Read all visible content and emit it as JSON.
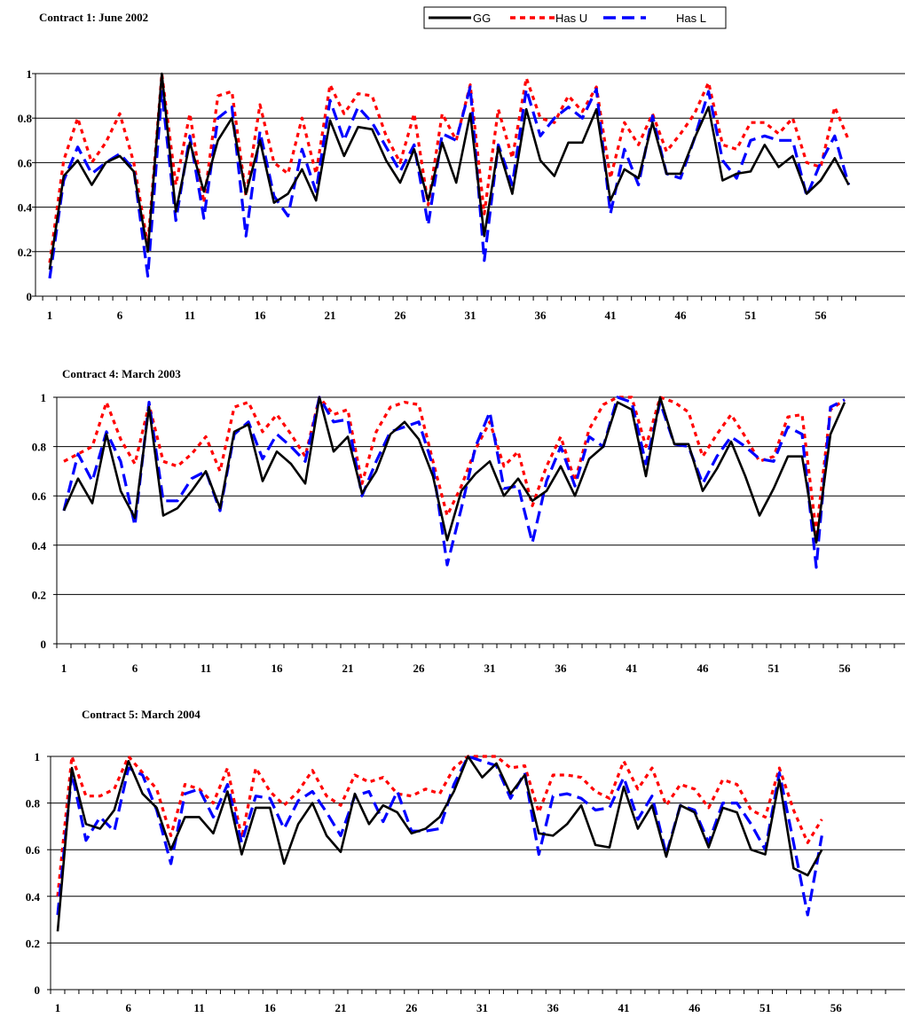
{
  "legend": {
    "placement": "top-center",
    "items": [
      {
        "label": "GG",
        "color": "#000000",
        "style": "solid"
      },
      {
        "label": "Has U",
        "color": "#ff0000",
        "style": "dotted"
      },
      {
        "label": "Has L",
        "color": "#0000ff",
        "style": "dashed"
      }
    ]
  },
  "chart_data": [
    {
      "type": "line",
      "title": "Contract 1: June 2002",
      "xlabel": "",
      "ylabel": "",
      "ylim": [
        0,
        1
      ],
      "yticks": [
        "0",
        "0.2",
        "0.4",
        "0.6",
        "0.8",
        "1"
      ],
      "xlim": [
        1,
        59
      ],
      "xticks": [
        "1",
        "6",
        "11",
        "16",
        "21",
        "26",
        "31",
        "36",
        "41",
        "46",
        "51",
        "56"
      ],
      "grid": "horizontal",
      "series": [
        {
          "name": "GG",
          "color": "#000000",
          "style": "solid",
          "values": [
            0.12,
            0.54,
            0.61,
            0.5,
            0.6,
            0.63,
            0.56,
            0.2,
            1.0,
            0.38,
            0.69,
            0.47,
            0.7,
            0.8,
            0.46,
            0.7,
            0.42,
            0.46,
            0.57,
            0.43,
            0.79,
            0.63,
            0.76,
            0.75,
            0.61,
            0.51,
            0.66,
            0.43,
            0.69,
            0.51,
            0.82,
            0.27,
            0.67,
            0.46,
            0.84,
            0.61,
            0.54,
            0.69,
            0.69,
            0.84,
            0.43,
            0.57,
            0.53,
            0.78,
            0.55,
            0.55,
            0.71,
            0.85,
            0.52,
            0.55,
            0.56,
            0.68,
            0.58,
            0.63,
            0.46,
            0.52,
            0.62,
            0.5
          ]
        },
        {
          "name": "Has U",
          "color": "#ff0000",
          "style": "dotted",
          "values": [
            0.15,
            0.61,
            0.8,
            0.6,
            0.69,
            0.82,
            0.6,
            0.23,
            1.0,
            0.5,
            0.82,
            0.42,
            0.9,
            0.92,
            0.45,
            0.86,
            0.6,
            0.55,
            0.8,
            0.55,
            0.95,
            0.82,
            0.91,
            0.9,
            0.72,
            0.6,
            0.82,
            0.41,
            0.82,
            0.7,
            0.95,
            0.37,
            0.84,
            0.62,
            0.98,
            0.8,
            0.78,
            0.9,
            0.83,
            0.94,
            0.53,
            0.78,
            0.68,
            0.82,
            0.65,
            0.73,
            0.82,
            0.96,
            0.68,
            0.66,
            0.78,
            0.78,
            0.73,
            0.8,
            0.6,
            0.58,
            0.85,
            0.7
          ]
        },
        {
          "name": "Has L",
          "color": "#0000ff",
          "style": "dashed",
          "values": [
            0.08,
            0.52,
            0.67,
            0.55,
            0.6,
            0.64,
            0.57,
            0.09,
            0.92,
            0.34,
            0.72,
            0.35,
            0.8,
            0.85,
            0.27,
            0.74,
            0.45,
            0.36,
            0.66,
            0.47,
            0.88,
            0.7,
            0.85,
            0.78,
            0.67,
            0.56,
            0.68,
            0.32,
            0.73,
            0.7,
            0.94,
            0.16,
            0.68,
            0.5,
            0.93,
            0.72,
            0.8,
            0.85,
            0.8,
            0.93,
            0.37,
            0.66,
            0.5,
            0.81,
            0.55,
            0.53,
            0.71,
            0.92,
            0.61,
            0.53,
            0.7,
            0.72,
            0.7,
            0.7,
            0.45,
            0.6,
            0.72,
            0.5
          ]
        }
      ]
    },
    {
      "type": "line",
      "title": "Contract 4: March 2003",
      "xlabel": "",
      "ylabel": "",
      "ylim": [
        0,
        1
      ],
      "yticks": [
        "0",
        "0.2",
        "0.4",
        "0.6",
        "0.8",
        "1"
      ],
      "xlim": [
        1,
        60
      ],
      "xticks": [
        "1",
        "6",
        "11",
        "16",
        "21",
        "26",
        "31",
        "36",
        "41",
        "46",
        "51",
        "56"
      ],
      "grid": "horizontal",
      "series": [
        {
          "name": "GG",
          "color": "#000000",
          "style": "solid",
          "values": [
            0.54,
            0.67,
            0.57,
            0.85,
            0.62,
            0.51,
            0.96,
            0.52,
            0.55,
            0.62,
            0.7,
            0.55,
            0.86,
            0.89,
            0.66,
            0.78,
            0.73,
            0.65,
            1.0,
            0.78,
            0.84,
            0.61,
            0.7,
            0.85,
            0.9,
            0.83,
            0.68,
            0.42,
            0.62,
            0.69,
            0.74,
            0.6,
            0.67,
            0.58,
            0.62,
            0.72,
            0.6,
            0.75,
            0.8,
            0.98,
            0.95,
            0.68,
            1.0,
            0.81,
            0.81,
            0.62,
            0.71,
            0.82,
            0.68,
            0.52,
            0.63,
            0.76,
            0.76,
            0.41,
            0.85,
            0.98
          ]
        },
        {
          "name": "Has U",
          "color": "#ff0000",
          "style": "dotted",
          "values": [
            0.74,
            0.77,
            0.8,
            0.98,
            0.83,
            0.73,
            0.97,
            0.74,
            0.72,
            0.77,
            0.84,
            0.7,
            0.96,
            0.98,
            0.86,
            0.93,
            0.85,
            0.76,
            1.0,
            0.93,
            0.95,
            0.65,
            0.86,
            0.96,
            0.98,
            0.97,
            0.74,
            0.52,
            0.64,
            0.79,
            0.9,
            0.72,
            0.78,
            0.56,
            0.72,
            0.84,
            0.66,
            0.87,
            0.97,
            1.0,
            1.0,
            0.8,
            1.0,
            0.98,
            0.94,
            0.76,
            0.85,
            0.93,
            0.84,
            0.74,
            0.76,
            0.92,
            0.93,
            0.45,
            0.95,
            0.99
          ]
        },
        {
          "name": "Has L",
          "color": "#0000ff",
          "style": "dashed",
          "values": [
            0.54,
            0.77,
            0.66,
            0.86,
            0.74,
            0.48,
            0.98,
            0.58,
            0.58,
            0.67,
            0.7,
            0.54,
            0.85,
            0.9,
            0.75,
            0.85,
            0.8,
            0.74,
            1.0,
            0.9,
            0.91,
            0.6,
            0.74,
            0.86,
            0.88,
            0.9,
            0.72,
            0.32,
            0.55,
            0.8,
            0.94,
            0.63,
            0.64,
            0.41,
            0.66,
            0.8,
            0.64,
            0.84,
            0.8,
            1.0,
            0.98,
            0.73,
            0.98,
            0.81,
            0.8,
            0.65,
            0.76,
            0.84,
            0.8,
            0.75,
            0.74,
            0.88,
            0.85,
            0.31,
            0.96,
            0.99
          ]
        }
      ]
    },
    {
      "type": "line",
      "title": "Contract 5: March 2004",
      "xlabel": "",
      "ylabel": "",
      "ylim": [
        0,
        1
      ],
      "yticks": [
        "0",
        "0.2",
        "0.4",
        "0.6",
        "0.8",
        "1"
      ],
      "xlim": [
        1,
        60
      ],
      "xticks": [
        "1",
        "6",
        "11",
        "16",
        "21",
        "26",
        "31",
        "36",
        "41",
        "46",
        "51",
        "56"
      ],
      "grid": "horizontal",
      "series": [
        {
          "name": "GG",
          "color": "#000000",
          "style": "solid",
          "values": [
            0.25,
            0.95,
            0.71,
            0.69,
            0.77,
            0.98,
            0.84,
            0.78,
            0.6,
            0.74,
            0.74,
            0.67,
            0.85,
            0.58,
            0.78,
            0.78,
            0.54,
            0.71,
            0.8,
            0.66,
            0.59,
            0.84,
            0.71,
            0.79,
            0.76,
            0.67,
            0.69,
            0.74,
            0.85,
            1.0,
            0.91,
            0.97,
            0.84,
            0.92,
            0.67,
            0.66,
            0.71,
            0.79,
            0.62,
            0.61,
            0.87,
            0.69,
            0.79,
            0.57,
            0.79,
            0.76,
            0.61,
            0.78,
            0.76,
            0.6,
            0.58,
            0.9,
            0.52,
            0.49,
            0.6
          ]
        },
        {
          "name": "Has U",
          "color": "#ff0000",
          "style": "dotted",
          "values": [
            0.4,
            1.0,
            0.83,
            0.83,
            0.86,
            1.0,
            0.93,
            0.86,
            0.66,
            0.88,
            0.86,
            0.8,
            0.95,
            0.65,
            0.95,
            0.85,
            0.79,
            0.85,
            0.94,
            0.83,
            0.79,
            0.92,
            0.89,
            0.91,
            0.84,
            0.83,
            0.86,
            0.84,
            0.95,
            1.0,
            1.0,
            1.0,
            0.95,
            0.96,
            0.76,
            0.92,
            0.92,
            0.91,
            0.85,
            0.82,
            0.98,
            0.86,
            0.95,
            0.79,
            0.88,
            0.86,
            0.78,
            0.9,
            0.88,
            0.77,
            0.74,
            0.95,
            0.77,
            0.63,
            0.73
          ]
        },
        {
          "name": "Has L",
          "color": "#0000ff",
          "style": "dashed",
          "values": [
            0.32,
            0.93,
            0.64,
            0.74,
            0.68,
            0.95,
            0.92,
            0.77,
            0.54,
            0.84,
            0.86,
            0.74,
            0.88,
            0.63,
            0.83,
            0.82,
            0.69,
            0.81,
            0.85,
            0.76,
            0.66,
            0.83,
            0.85,
            0.72,
            0.85,
            0.68,
            0.68,
            0.69,
            0.88,
            1.0,
            0.98,
            0.96,
            0.82,
            0.93,
            0.58,
            0.83,
            0.84,
            0.82,
            0.77,
            0.78,
            0.91,
            0.73,
            0.83,
            0.58,
            0.79,
            0.77,
            0.63,
            0.8,
            0.8,
            0.71,
            0.6,
            0.93,
            0.63,
            0.32,
            0.66
          ]
        }
      ]
    }
  ]
}
